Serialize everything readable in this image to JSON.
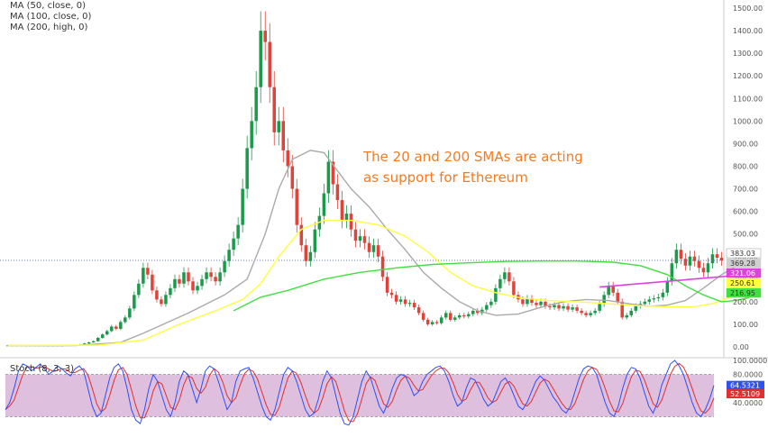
{
  "chart_data": {
    "type": "candlestick",
    "title": "",
    "indicators": [
      "MA (50, close, 0)",
      "MA (100, close, 0)",
      "MA (200, high, 0)"
    ],
    "annotation": [
      "The 20 and 200 SMAs are acting",
      "as support for Ethereum"
    ],
    "price_axis": {
      "ylim": [
        -20,
        1520
      ],
      "ticks": [
        "1500.00",
        "1400.00",
        "1300.00",
        "1200.00",
        "1100.00",
        "1000.00",
        "900.00",
        "800.00",
        "700.00",
        "600.00",
        "500.00",
        "400.00",
        "300.00",
        "200.00",
        "100.00",
        "0.00"
      ],
      "tick_values": [
        1500,
        1400,
        1300,
        1200,
        1100,
        1000,
        900,
        800,
        700,
        600,
        500,
        400,
        300,
        200,
        100,
        0
      ]
    },
    "price_markers": [
      {
        "label": "383.03",
        "value": 383.03,
        "color": "#ffffff",
        "text_color": "#333333"
      },
      {
        "label": "369.28",
        "value": 369.28,
        "color": "#d0d0d0",
        "text_color": "#333333"
      },
      {
        "label": "321.06",
        "value": 321.06,
        "color": "#e040e0",
        "text_color": "#ffffff"
      },
      {
        "label": "250.61",
        "value": 250.61,
        "color": "#ffff40",
        "text_color": "#333333"
      },
      {
        "label": "216.95",
        "value": 216.95,
        "color": "#40e040",
        "text_color": "#333333"
      }
    ],
    "current_price": 383.03,
    "candles": [
      [
        6,
        6
      ],
      [
        6,
        6
      ],
      [
        6,
        6
      ],
      [
        6,
        6
      ],
      [
        6,
        6
      ],
      [
        6,
        6
      ],
      [
        6,
        6
      ],
      [
        6,
        6
      ],
      [
        6,
        6
      ],
      [
        6,
        6
      ],
      [
        6,
        6
      ],
      [
        6,
        6
      ],
      [
        6,
        6
      ],
      [
        6,
        7
      ],
      [
        7,
        6
      ],
      [
        6,
        8
      ],
      [
        8,
        10
      ],
      [
        10,
        15
      ],
      [
        15,
        20
      ],
      [
        20,
        25
      ],
      [
        25,
        40
      ],
      [
        40,
        55
      ],
      [
        55,
        70
      ],
      [
        70,
        90
      ],
      [
        90,
        80
      ],
      [
        80,
        110
      ],
      [
        110,
        130
      ],
      [
        130,
        170
      ],
      [
        170,
        230
      ],
      [
        230,
        280
      ],
      [
        280,
        350
      ],
      [
        350,
        320
      ],
      [
        320,
        250
      ],
      [
        250,
        210
      ],
      [
        210,
        190
      ],
      [
        190,
        230
      ],
      [
        230,
        260
      ],
      [
        260,
        300
      ],
      [
        300,
        280
      ],
      [
        280,
        330
      ],
      [
        330,
        290
      ],
      [
        290,
        250
      ],
      [
        250,
        270
      ],
      [
        270,
        300
      ],
      [
        300,
        330
      ],
      [
        330,
        310
      ],
      [
        310,
        290
      ],
      [
        290,
        330
      ],
      [
        330,
        380
      ],
      [
        380,
        430
      ],
      [
        430,
        480
      ],
      [
        480,
        540
      ],
      [
        540,
        700
      ],
      [
        700,
        880
      ],
      [
        880,
        1000
      ],
      [
        1000,
        1150
      ],
      [
        1150,
        1400
      ],
      [
        1400,
        1350
      ],
      [
        1350,
        1150
      ],
      [
        1150,
        950
      ],
      [
        950,
        1000
      ],
      [
        1000,
        870
      ],
      [
        870,
        800
      ],
      [
        800,
        700
      ],
      [
        700,
        540
      ],
      [
        540,
        450
      ],
      [
        450,
        380
      ],
      [
        380,
        420
      ],
      [
        420,
        520
      ],
      [
        520,
        580
      ],
      [
        580,
        680
      ],
      [
        680,
        820
      ],
      [
        820,
        720
      ],
      [
        720,
        650
      ],
      [
        650,
        560
      ],
      [
        560,
        590
      ],
      [
        590,
        520
      ],
      [
        520,
        470
      ],
      [
        470,
        490
      ],
      [
        490,
        460
      ],
      [
        460,
        420
      ],
      [
        420,
        450
      ],
      [
        450,
        400
      ],
      [
        400,
        310
      ],
      [
        310,
        240
      ],
      [
        240,
        230
      ],
      [
        230,
        200
      ],
      [
        200,
        210
      ],
      [
        210,
        190
      ],
      [
        190,
        195
      ],
      [
        195,
        175
      ],
      [
        175,
        150
      ],
      [
        150,
        120
      ],
      [
        120,
        100
      ],
      [
        100,
        110
      ],
      [
        110,
        105
      ],
      [
        105,
        130
      ],
      [
        130,
        150
      ],
      [
        150,
        120
      ],
      [
        120,
        130
      ],
      [
        130,
        140
      ],
      [
        140,
        135
      ],
      [
        135,
        145
      ],
      [
        145,
        160
      ],
      [
        160,
        150
      ],
      [
        150,
        165
      ],
      [
        165,
        185
      ],
      [
        185,
        200
      ],
      [
        200,
        260
      ],
      [
        260,
        300
      ],
      [
        300,
        330
      ],
      [
        330,
        290
      ],
      [
        290,
        230
      ],
      [
        230,
        210
      ],
      [
        210,
        190
      ],
      [
        190,
        215
      ],
      [
        215,
        195
      ],
      [
        195,
        185
      ],
      [
        185,
        200
      ],
      [
        200,
        180
      ],
      [
        180,
        175
      ],
      [
        175,
        185
      ],
      [
        185,
        170
      ],
      [
        170,
        180
      ],
      [
        180,
        165
      ],
      [
        165,
        175
      ],
      [
        175,
        160
      ],
      [
        160,
        150
      ],
      [
        150,
        140
      ],
      [
        140,
        150
      ],
      [
        150,
        160
      ],
      [
        160,
        190
      ],
      [
        190,
        230
      ],
      [
        230,
        270
      ],
      [
        270,
        240
      ],
      [
        240,
        200
      ],
      [
        200,
        130
      ],
      [
        130,
        140
      ],
      [
        140,
        160
      ],
      [
        160,
        180
      ],
      [
        180,
        190
      ],
      [
        190,
        200
      ],
      [
        200,
        210
      ],
      [
        210,
        215
      ],
      [
        215,
        220
      ],
      [
        220,
        240
      ],
      [
        240,
        290
      ],
      [
        290,
        370
      ],
      [
        370,
        430
      ],
      [
        430,
        390
      ],
      [
        390,
        360
      ],
      [
        360,
        400
      ],
      [
        400,
        380
      ],
      [
        380,
        350
      ],
      [
        350,
        330
      ],
      [
        330,
        370
      ],
      [
        370,
        410
      ],
      [
        410,
        395
      ],
      [
        395,
        383
      ]
    ],
    "ma_series": [
      {
        "indicator": "MA (50, close, 0)",
        "color": "#aaaaaa",
        "points": [
          [
            0,
            6
          ],
          [
            15,
            6
          ],
          [
            25,
            20
          ],
          [
            30,
            60
          ],
          [
            40,
            150
          ],
          [
            48,
            230
          ],
          [
            53,
            300
          ],
          [
            57,
            500
          ],
          [
            60,
            700
          ],
          [
            63,
            830
          ],
          [
            67,
            870
          ],
          [
            70,
            860
          ],
          [
            73,
            780
          ],
          [
            76,
            700
          ],
          [
            80,
            620
          ],
          [
            84,
            520
          ],
          [
            88,
            430
          ],
          [
            92,
            330
          ],
          [
            96,
            260
          ],
          [
            100,
            200
          ],
          [
            104,
            160
          ],
          [
            108,
            140
          ],
          [
            113,
            145
          ],
          [
            118,
            175
          ],
          [
            123,
            200
          ],
          [
            128,
            210
          ],
          [
            133,
            205
          ],
          [
            138,
            190
          ],
          [
            142,
            180
          ],
          [
            146,
            185
          ],
          [
            150,
            205
          ],
          [
            154,
            260
          ],
          [
            158,
            320
          ],
          [
            162,
            365
          ],
          [
            164,
            369
          ]
        ]
      },
      {
        "indicator": "MA (100, close, 0)",
        "color": "#ffff40",
        "points": [
          [
            0,
            6
          ],
          [
            20,
            8
          ],
          [
            30,
            30
          ],
          [
            38,
            100
          ],
          [
            46,
            160
          ],
          [
            52,
            210
          ],
          [
            56,
            280
          ],
          [
            60,
            400
          ],
          [
            65,
            520
          ],
          [
            70,
            560
          ],
          [
            76,
            560
          ],
          [
            82,
            540
          ],
          [
            88,
            490
          ],
          [
            93,
            420
          ],
          [
            98,
            330
          ],
          [
            103,
            270
          ],
          [
            108,
            240
          ],
          [
            114,
            215
          ],
          [
            120,
            205
          ],
          [
            126,
            200
          ],
          [
            134,
            190
          ],
          [
            140,
            182
          ],
          [
            146,
            178
          ],
          [
            152,
            178
          ],
          [
            156,
            192
          ],
          [
            160,
            220
          ],
          [
            164,
            250
          ]
        ]
      },
      {
        "indicator": "MA (200, high, 0)",
        "color": "#40e040",
        "points": [
          [
            50,
            160
          ],
          [
            56,
            220
          ],
          [
            62,
            250
          ],
          [
            70,
            300
          ],
          [
            78,
            330
          ],
          [
            86,
            350
          ],
          [
            94,
            365
          ],
          [
            102,
            372
          ],
          [
            110,
            378
          ],
          [
            118,
            380
          ],
          [
            126,
            380
          ],
          [
            134,
            375
          ],
          [
            140,
            360
          ],
          [
            146,
            320
          ],
          [
            150,
            270
          ],
          [
            154,
            230
          ],
          [
            158,
            200
          ],
          [
            161,
            205
          ],
          [
            164,
            217
          ]
        ]
      },
      {
        "indicator": "Trendline",
        "color": "#e040e0",
        "points": [
          [
            131,
            265
          ],
          [
            164,
            321
          ]
        ]
      }
    ],
    "stochastic": {
      "title": "Stoch (8, 3, 3)",
      "ylim": [
        0,
        100
      ],
      "ticks": [
        "100.0000",
        "80.0000",
        "40.0000"
      ],
      "tick_values": [
        100,
        80,
        40
      ],
      "overbought": 80,
      "oversold": 20,
      "markers": [
        {
          "label": "64.5321",
          "value": 64.5321,
          "color": "#3050f0"
        },
        {
          "label": "52.5109",
          "value": 52.5109,
          "color": "#e03030"
        }
      ],
      "k_color": "#3050f0",
      "d_color": "#e03030",
      "k": [
        30,
        40,
        60,
        85,
        95,
        92,
        85,
        90,
        95,
        88,
        80,
        85,
        92,
        88,
        82,
        78,
        88,
        92,
        85,
        60,
        35,
        20,
        25,
        50,
        75,
        90,
        95,
        85,
        60,
        30,
        15,
        10,
        30,
        60,
        80,
        70,
        50,
        30,
        20,
        40,
        70,
        85,
        80,
        60,
        40,
        60,
        85,
        92,
        88,
        70,
        50,
        30,
        40,
        70,
        85,
        88,
        90,
        75,
        55,
        35,
        20,
        15,
        30,
        55,
        80,
        90,
        85,
        70,
        50,
        30,
        20,
        25,
        45,
        70,
        85,
        75,
        50,
        25,
        10,
        8,
        20,
        45,
        70,
        85,
        75,
        55,
        35,
        25,
        40,
        60,
        75,
        80,
        78,
        65,
        50,
        55,
        70,
        80,
        85,
        90,
        92,
        85,
        70,
        50,
        35,
        40,
        60,
        75,
        72,
        60,
        45,
        35,
        40,
        55,
        70,
        75,
        65,
        50,
        35,
        30,
        40,
        55,
        70,
        78,
        72,
        60,
        48,
        40,
        30,
        25,
        35,
        55,
        75,
        88,
        92,
        90,
        80,
        60,
        40,
        25,
        20,
        35,
        60,
        80,
        90,
        88,
        75,
        55,
        35,
        25,
        40,
        65,
        80,
        95,
        100,
        92,
        80,
        60,
        40,
        25,
        20,
        30,
        45,
        64.5
      ]
    }
  }
}
